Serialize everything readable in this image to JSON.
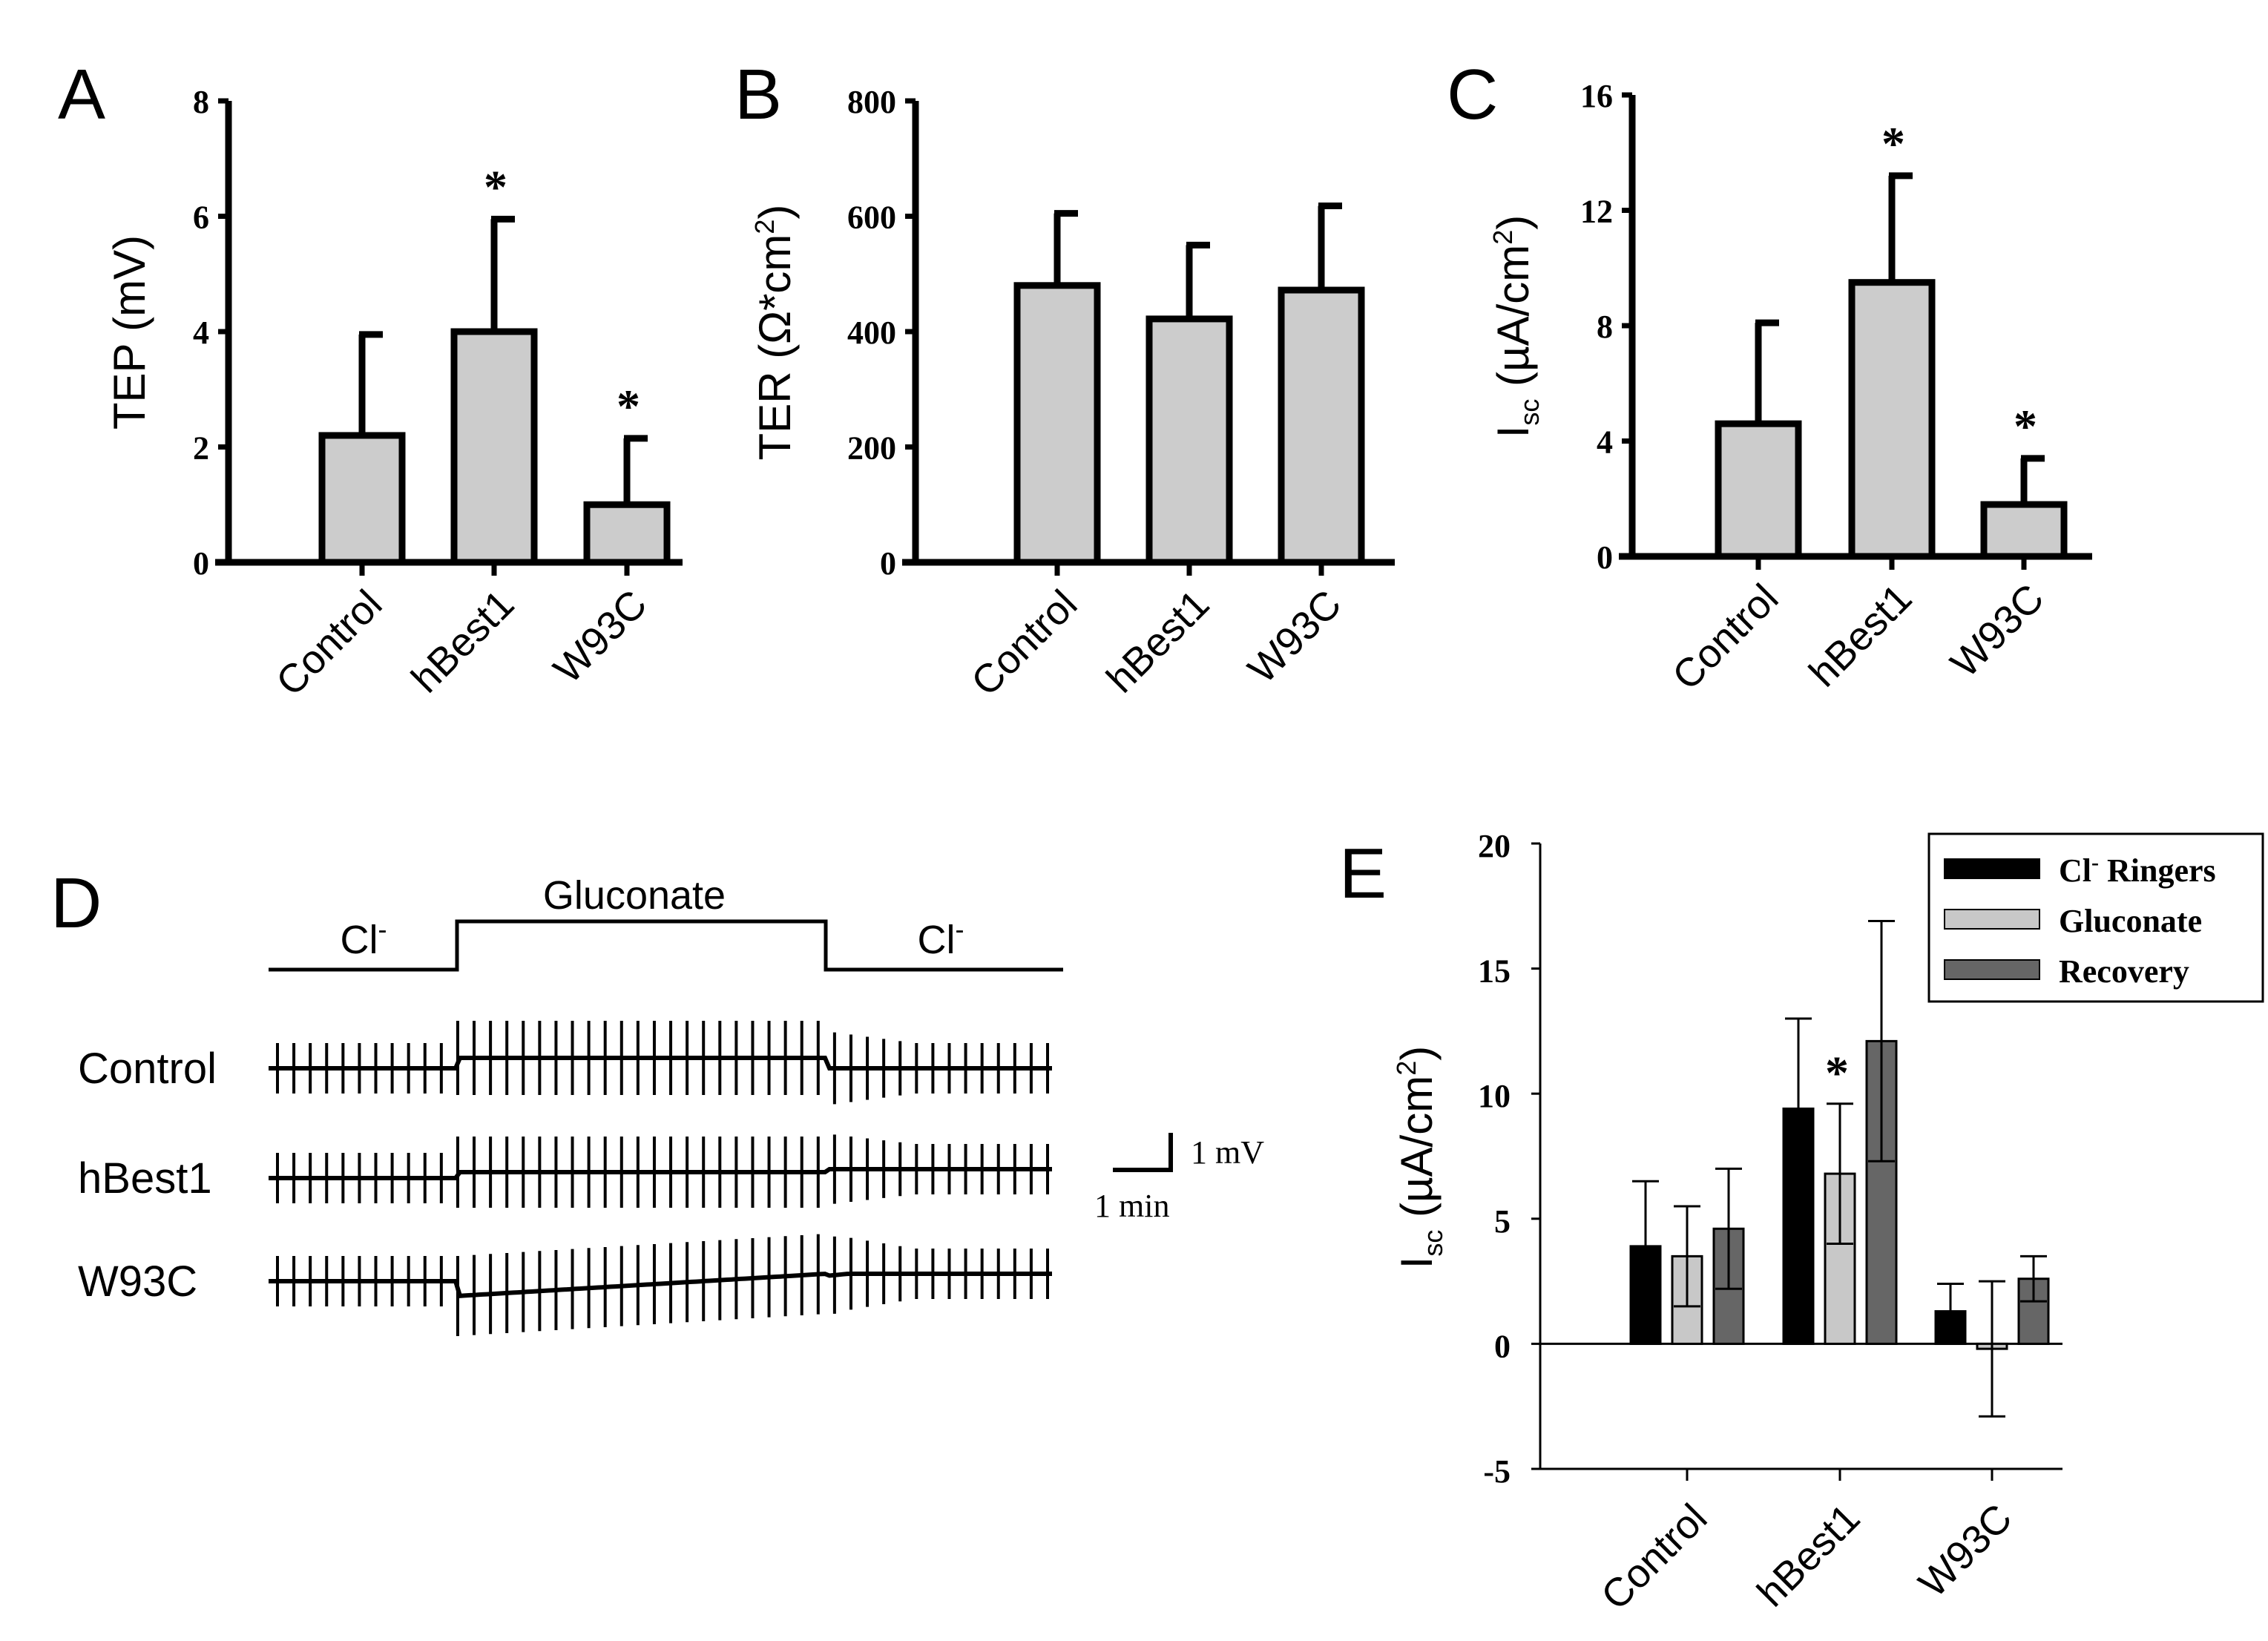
{
  "chart_data": [
    {
      "panel": "A",
      "type": "bar",
      "categories": [
        "Control",
        "hBest1",
        "W93C"
      ],
      "values": [
        2.2,
        4.0,
        1.0
      ],
      "error_upper": [
        3.95,
        5.95,
        2.15
      ],
      "significance": [
        "",
        "*",
        "*"
      ],
      "ylabel": "TEP (mV)",
      "xlabel": "",
      "ylim": [
        0,
        8
      ],
      "yticks": [
        "0",
        "2",
        "4",
        "6",
        "8"
      ],
      "bar_color": "#cccccc",
      "grid": false
    },
    {
      "panel": "B",
      "type": "bar",
      "categories": [
        "Control",
        "hBest1",
        "W93C"
      ],
      "values": [
        480,
        422,
        472
      ],
      "error_upper": [
        605,
        550,
        618
      ],
      "significance": [
        "",
        "",
        ""
      ],
      "ylabel_main": "TER (Ω*cm",
      "ylabel_sup": "2",
      "ylabel_end": ")",
      "xlabel": "",
      "ylim": [
        0,
        800
      ],
      "yticks": [
        "0",
        "200",
        "400",
        "600",
        "800"
      ],
      "bar_color": "#cccccc",
      "grid": false
    },
    {
      "panel": "C",
      "type": "bar",
      "categories": [
        "Control",
        "hBest1",
        "W93C"
      ],
      "values": [
        4.6,
        9.5,
        1.8
      ],
      "error_upper": [
        8.1,
        13.2,
        3.4
      ],
      "significance": [
        "",
        "*",
        "*"
      ],
      "ylabel_main": "I",
      "ylabel_sub": "sc",
      "ylabel_unit": " (µA/cm",
      "ylabel_sup": "2",
      "ylabel_end": ")",
      "xlabel": "",
      "ylim": [
        0,
        16
      ],
      "yticks": [
        "0",
        "4",
        "8",
        "12",
        "16"
      ],
      "bar_color": "#cccccc",
      "grid": false
    },
    {
      "panel": "E",
      "type": "bar",
      "categories": [
        "Control",
        "hBest1",
        "W93C"
      ],
      "series": [
        {
          "name": "Cl",
          "name_sup": "-",
          "name_rest": " Ringers",
          "color": "#000000",
          "values": [
            3.9,
            9.4,
            1.3
          ],
          "error": [
            2.6,
            3.6,
            1.1
          ]
        },
        {
          "name": "Gluconate",
          "color": "#c8c8c8",
          "values": [
            3.5,
            6.8,
            -0.2
          ],
          "error": [
            2.0,
            2.8,
            2.7
          ]
        },
        {
          "name": "Recovery",
          "color": "#666666",
          "values": [
            4.6,
            12.1,
            2.6
          ],
          "error": [
            2.4,
            4.8,
            0.9
          ]
        }
      ],
      "significance": [
        {
          "category": 1,
          "series": 1,
          "mark": "*"
        }
      ],
      "ylabel_main": "I",
      "ylabel_sub": "sc",
      "ylabel_unit": " (µA/cm",
      "ylabel_sup": "2",
      "ylabel_end": ")",
      "ylim": [
        -5,
        20
      ],
      "yticks": [
        "-5",
        "0",
        "5",
        "10",
        "15",
        "20"
      ],
      "legend_position": "top-right",
      "grid": false
    }
  ],
  "panels": {
    "A": "A",
    "B": "B",
    "C": "C",
    "D": "D",
    "E": "E"
  },
  "panel_d": {
    "solutions": [
      "Cl",
      "Gluconate",
      "Cl"
    ],
    "solution_superscript": "-",
    "traces": [
      "Control",
      "hBest1",
      "W93C"
    ],
    "scale_bar_voltage": "1 mV",
    "scale_bar_time": "1 min"
  }
}
